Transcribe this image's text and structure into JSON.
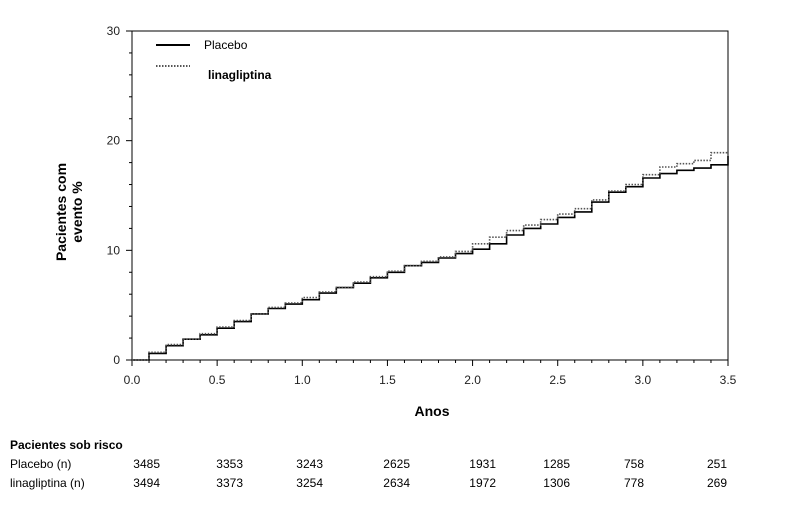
{
  "chart_data": {
    "type": "line",
    "xlabel": "Anos",
    "ylabel_lines": [
      "Pacientes com",
      "evento %"
    ],
    "xlim": [
      0,
      3.5
    ],
    "ylim": [
      0,
      30
    ],
    "x_ticks": [
      "0.0",
      "0.5",
      "1.0",
      "1.5",
      "2.0",
      "2.5",
      "3.0",
      "3.5"
    ],
    "y_ticks": [
      "0",
      "10",
      "20",
      "30"
    ],
    "legend_position": "top-left",
    "series": [
      {
        "name": "Placebo",
        "style": "solid",
        "color": "#000000",
        "points": [
          [
            0,
            0
          ],
          [
            0.1,
            0.6
          ],
          [
            0.2,
            1.3
          ],
          [
            0.3,
            1.9
          ],
          [
            0.4,
            2.3
          ],
          [
            0.5,
            2.9
          ],
          [
            0.6,
            3.5
          ],
          [
            0.7,
            4.2
          ],
          [
            0.8,
            4.7
          ],
          [
            0.9,
            5.1
          ],
          [
            1.0,
            5.5
          ],
          [
            1.1,
            6.1
          ],
          [
            1.2,
            6.6
          ],
          [
            1.3,
            7.0
          ],
          [
            1.4,
            7.5
          ],
          [
            1.5,
            8.0
          ],
          [
            1.6,
            8.6
          ],
          [
            1.7,
            8.9
          ],
          [
            1.8,
            9.3
          ],
          [
            1.9,
            9.7
          ],
          [
            2.0,
            10.1
          ],
          [
            2.1,
            10.6
          ],
          [
            2.2,
            11.4
          ],
          [
            2.3,
            12.0
          ],
          [
            2.4,
            12.4
          ],
          [
            2.5,
            13.0
          ],
          [
            2.6,
            13.5
          ],
          [
            2.7,
            14.4
          ],
          [
            2.8,
            15.3
          ],
          [
            2.9,
            15.8
          ],
          [
            3.0,
            16.6
          ],
          [
            3.1,
            17.0
          ],
          [
            3.2,
            17.3
          ],
          [
            3.3,
            17.5
          ],
          [
            3.4,
            17.8
          ],
          [
            3.5,
            18.6
          ]
        ]
      },
      {
        "name": "linagliptina",
        "style": "dotted",
        "color": "#555555",
        "points": [
          [
            0,
            0
          ],
          [
            0.1,
            0.7
          ],
          [
            0.2,
            1.4
          ],
          [
            0.3,
            1.9
          ],
          [
            0.4,
            2.4
          ],
          [
            0.5,
            3.0
          ],
          [
            0.6,
            3.6
          ],
          [
            0.7,
            4.2
          ],
          [
            0.8,
            4.8
          ],
          [
            0.9,
            5.2
          ],
          [
            1.0,
            5.7
          ],
          [
            1.1,
            6.2
          ],
          [
            1.2,
            6.6
          ],
          [
            1.3,
            7.1
          ],
          [
            1.4,
            7.6
          ],
          [
            1.5,
            8.1
          ],
          [
            1.6,
            8.6
          ],
          [
            1.7,
            9.0
          ],
          [
            1.8,
            9.4
          ],
          [
            1.9,
            9.9
          ],
          [
            2.0,
            10.6
          ],
          [
            2.1,
            11.2
          ],
          [
            2.2,
            11.8
          ],
          [
            2.3,
            12.3
          ],
          [
            2.4,
            12.8
          ],
          [
            2.5,
            13.3
          ],
          [
            2.6,
            13.8
          ],
          [
            2.7,
            14.6
          ],
          [
            2.8,
            15.4
          ],
          [
            2.9,
            16.0
          ],
          [
            3.0,
            16.9
          ],
          [
            3.1,
            17.6
          ],
          [
            3.2,
            17.9
          ],
          [
            3.3,
            18.2
          ],
          [
            3.4,
            18.9
          ],
          [
            3.5,
            19.0
          ]
        ]
      }
    ]
  },
  "risk_table": {
    "title": "Pacientes sob risco",
    "rows": [
      {
        "label": "Placebo (n)",
        "values": [
          "3485",
          "3353",
          "3243",
          "2625",
          "1931",
          "1285",
          "758",
          "251"
        ]
      },
      {
        "label": "linagliptina (n)",
        "values": [
          "3494",
          "3373",
          "3254",
          "2634",
          "1972",
          "1306",
          "778",
          "269"
        ]
      }
    ]
  }
}
